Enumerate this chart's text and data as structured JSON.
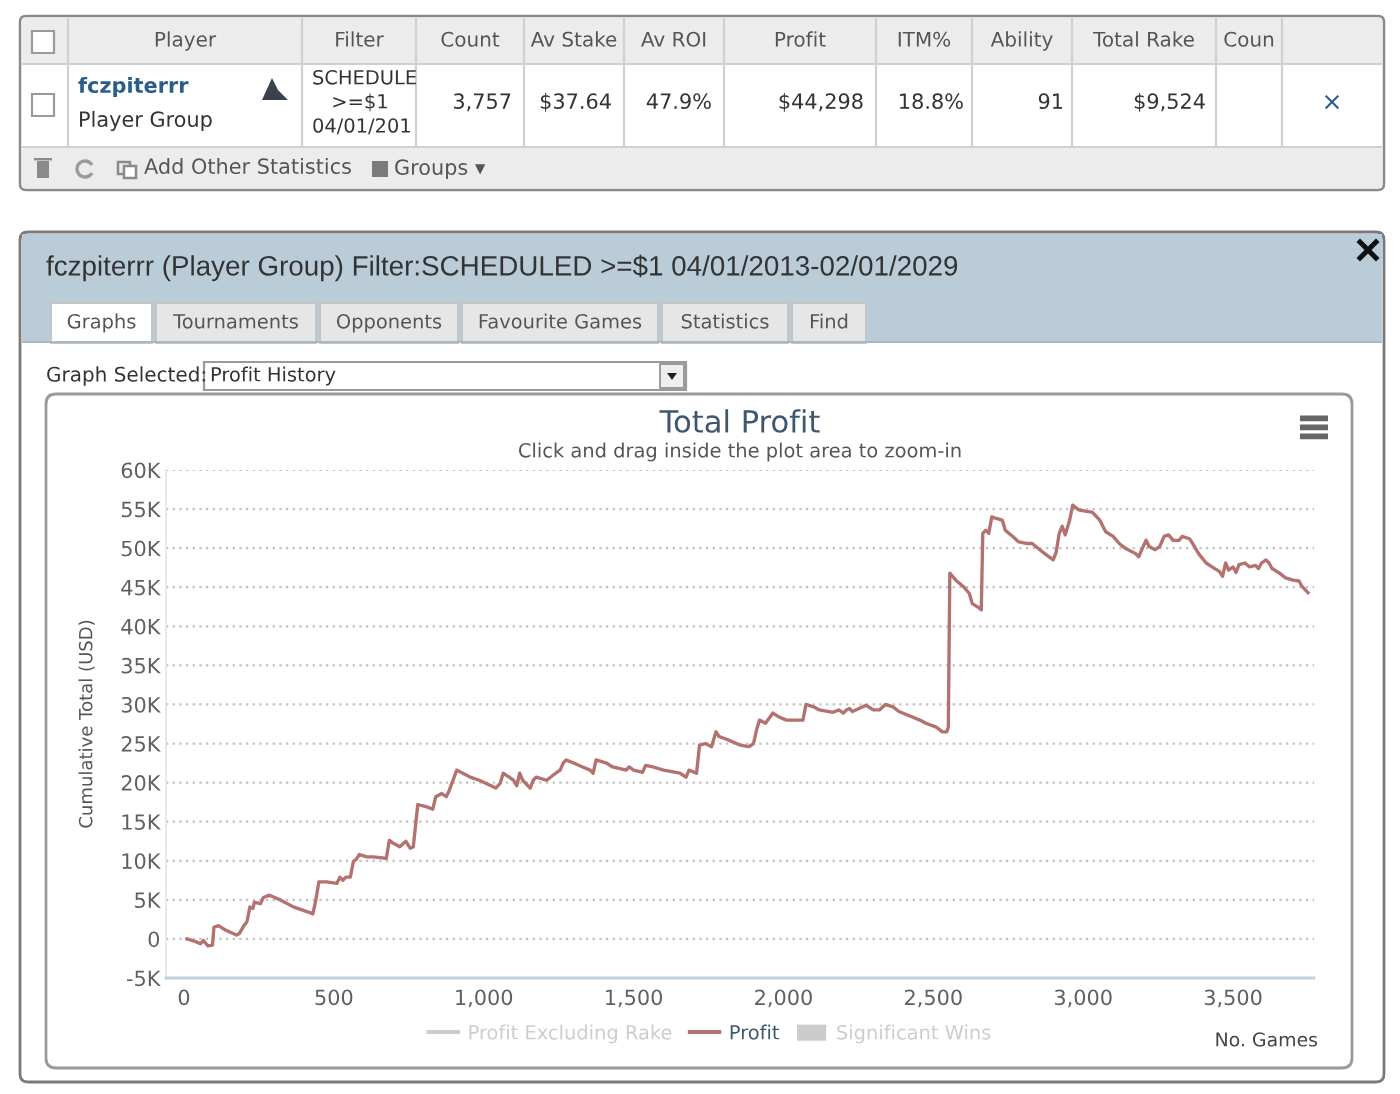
{
  "chart_data": [
    {
      "type": "other",
      "annotations": [
        "Player",
        "Filter",
        "Count",
        "Av Stake",
        "Av ROI",
        "Profit",
        "ITM%",
        "Ability",
        "Total Rake",
        "Coun",
        "fczpiterrr",
        "Player Group",
        "SCHEDULE",
        ">=$1",
        "04/01/201",
        "3,757",
        "$37.64",
        "47.9%",
        "$44,298",
        "18.8%",
        "91",
        "$9,524",
        "×",
        "Add Other Statistics",
        "Groups ▾"
      ]
    },
    {
      "type": "line",
      "title": "Total Profit",
      "subtitle": "Click and drag inside the plot area to zoom-in",
      "xlabel": "No. Games",
      "ylabel": "Cumulative Total (USD)",
      "annotations": [
        "fczpiterrr (Player Group) Filter:SCHEDULED >=$1 04/01/2013-02/01/2029",
        "Graphs",
        "Tournaments",
        "Opponents",
        "Favourite Games",
        "Statistics",
        "Find",
        "Graph Selected:",
        "Profit History"
      ],
      "xlim": [
        -60,
        3770
      ],
      "xticks": [
        0,
        500,
        {
          "value": 1000,
          "label": "1,000"
        },
        {
          "value": 1500,
          "label": "1,500"
        },
        {
          "value": 2000,
          "label": "2,000"
        },
        {
          "value": 2500,
          "label": "2,500"
        },
        {
          "value": 3000,
          "label": "3,000"
        },
        {
          "value": 3500,
          "label": "3,500"
        }
      ],
      "ylim": [
        -5000,
        60000
      ],
      "yticks": [
        {
          "value": -5000,
          "label": "-5K"
        },
        0,
        {
          "value": 5000,
          "label": "5K"
        },
        {
          "value": 10000,
          "label": "10K"
        },
        {
          "value": 15000,
          "label": "15K"
        },
        {
          "value": 20000,
          "label": "20K"
        },
        {
          "value": 25000,
          "label": "25K"
        },
        {
          "value": 30000,
          "label": "30K"
        },
        {
          "value": 35000,
          "label": "35K"
        },
        {
          "value": 40000,
          "label": "40K"
        },
        {
          "value": 45000,
          "label": "45K"
        },
        {
          "value": 50000,
          "label": "50K"
        },
        {
          "value": 55000,
          "label": "55K"
        },
        {
          "value": 60000,
          "label": "60K"
        }
      ],
      "grid": "y",
      "legend": "bottom",
      "series": [
        {
          "name": "Profit Excluding Rake",
          "type": "line",
          "color": "#cccccc"
        },
        {
          "name": "Profit",
          "type": "line",
          "color": "#b3716f",
          "x": [
            10,
            35,
            55,
            65,
            80,
            95,
            100,
            115,
            140,
            175,
            185,
            200,
            210,
            220,
            230,
            235,
            255,
            265,
            285,
            320,
            365,
            410,
            430,
            440,
            450,
            475,
            510,
            520,
            530,
            540,
            555,
            565,
            575,
            585,
            610,
            630,
            655,
            675,
            685,
            700,
            720,
            740,
            755,
            765,
            780,
            810,
            830,
            840,
            860,
            875,
            885,
            910,
            930,
            955,
            985,
            1030,
            1040,
            1055,
            1065,
            1085,
            1100,
            1110,
            1120,
            1130,
            1155,
            1165,
            1175,
            1210,
            1240,
            1255,
            1265,
            1275,
            1300,
            1330,
            1355,
            1365,
            1375,
            1410,
            1430,
            1455,
            1475,
            1485,
            1500,
            1530,
            1540,
            1565,
            1600,
            1655,
            1675,
            1685,
            1710,
            1720,
            1740,
            1760,
            1775,
            1785,
            1820,
            1855,
            1885,
            1900,
            1910,
            1920,
            1940,
            1965,
            1985,
            2010,
            2065,
            2075,
            2100,
            2120,
            2165,
            2185,
            2200,
            2210,
            2220,
            2230,
            2265,
            2275,
            2300,
            2320,
            2340,
            2365,
            2385,
            2430,
            2455,
            2475,
            2510,
            2530,
            2545,
            2550,
            2555,
            2575,
            2600,
            2620,
            2630,
            2655,
            2660,
            2665,
            2675,
            2685,
            2695,
            2710,
            2730,
            2740,
            2765,
            2785,
            2810,
            2830,
            2855,
            2875,
            2900,
            2910,
            2920,
            2930,
            2940,
            2955,
            2965,
            2985,
            3010,
            3030,
            3055,
            3075,
            3100,
            3120,
            3140,
            3175,
            3185,
            3200,
            3210,
            3220,
            3240,
            3255,
            3270,
            3285,
            3300,
            3320,
            3330,
            3355,
            3365,
            3385,
            3410,
            3430,
            3455,
            3465,
            3475,
            3485,
            3500,
            3510,
            3520,
            3540,
            3555,
            3575,
            3585,
            3595,
            3610,
            3620,
            3630,
            3655,
            3675,
            3700,
            3720,
            3730,
            3750
          ],
          "values": [
            0,
            -300,
            -600,
            -200,
            -900,
            -800,
            1500,
            1700,
            1100,
            500,
            700,
            1700,
            2200,
            4100,
            3900,
            4700,
            4500,
            5300,
            5600,
            5000,
            4100,
            3500,
            3200,
            5000,
            7300,
            7300,
            7100,
            7900,
            7500,
            7900,
            7900,
            9900,
            10200,
            10800,
            10500,
            10500,
            10400,
            10300,
            12600,
            12200,
            11800,
            12500,
            11600,
            11800,
            17200,
            16900,
            16600,
            18200,
            18600,
            18200,
            19000,
            21600,
            21200,
            20700,
            20300,
            19500,
            19300,
            19900,
            21200,
            20700,
            20300,
            19600,
            21200,
            20300,
            19300,
            20300,
            20700,
            20300,
            21200,
            21600,
            22500,
            22900,
            22500,
            22000,
            21600,
            21200,
            22900,
            22500,
            22000,
            21800,
            21600,
            22000,
            21600,
            21300,
            22200,
            22000,
            21600,
            21200,
            20700,
            21600,
            21200,
            24800,
            25000,
            24600,
            26500,
            25900,
            25400,
            24800,
            24600,
            25000,
            26700,
            28000,
            27600,
            28900,
            28400,
            28000,
            28000,
            30000,
            29700,
            29300,
            29000,
            29300,
            28900,
            29300,
            29500,
            29100,
            29700,
            29900,
            29300,
            29300,
            30000,
            29700,
            29100,
            28400,
            28000,
            27600,
            27100,
            26500,
            26500,
            27100,
            46800,
            45900,
            45100,
            44200,
            42900,
            42300,
            42100,
            51900,
            52300,
            51900,
            54000,
            53800,
            53600,
            52300,
            51500,
            50800,
            50600,
            50600,
            49800,
            49200,
            48500,
            49500,
            51900,
            52800,
            51700,
            53600,
            55500,
            54900,
            54700,
            54600,
            53600,
            52100,
            51500,
            50600,
            50000,
            49300,
            48900,
            50200,
            51000,
            50200,
            49800,
            50200,
            51500,
            51700,
            51000,
            51000,
            51500,
            51200,
            50600,
            49300,
            48100,
            47600,
            47000,
            46400,
            48100,
            47200,
            47600,
            46900,
            47900,
            48100,
            47600,
            47800,
            47400,
            48100,
            48500,
            48100,
            47400,
            46800,
            46200,
            45900,
            45800,
            45100,
            44300
          ]
        },
        {
          "name": "Significant Wins",
          "type": "area",
          "color": "#cccccc"
        }
      ]
    }
  ]
}
